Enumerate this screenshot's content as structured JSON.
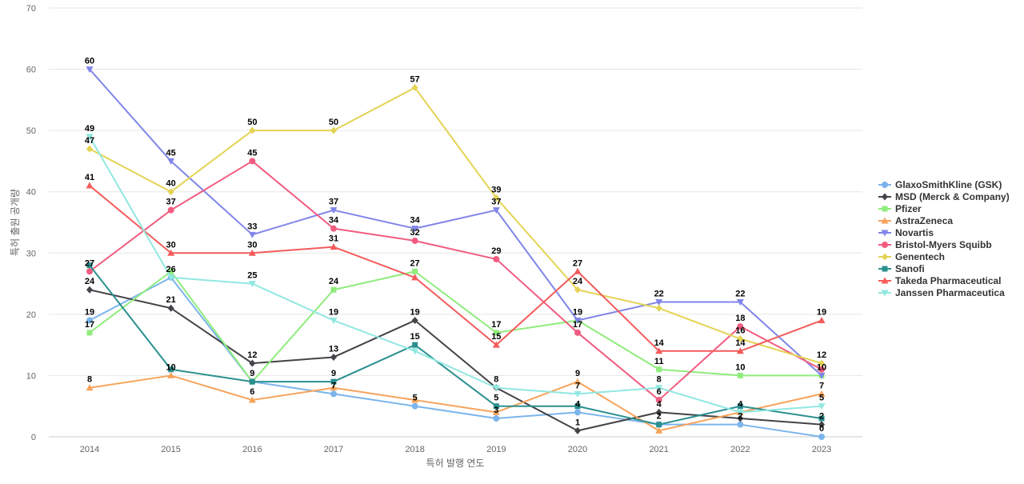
{
  "chart_data": {
    "type": "line",
    "title": "",
    "xlabel": "특허 발행 연도",
    "ylabel": "특허 출원 공개량",
    "x": [
      "2014",
      "2015",
      "2016",
      "2017",
      "2018",
      "2019",
      "2020",
      "2021",
      "2022",
      "2023"
    ],
    "ylim": [
      0,
      70
    ],
    "yticks": [
      0,
      10,
      20,
      30,
      40,
      50,
      60,
      70
    ],
    "grid": true,
    "legend_position": "right",
    "series": [
      {
        "name": "GlaxoSmithKline (GSK)",
        "color": "#7cb5ec",
        "marker": "circle",
        "values": [
          19,
          26,
          9,
          7,
          5,
          3,
          4,
          2,
          2,
          0
        ]
      },
      {
        "name": "MSD (Merck & Company)",
        "color": "#434348",
        "marker": "diamond",
        "values": [
          24,
          21,
          12,
          13,
          19,
          8,
          1,
          4,
          3,
          2
        ]
      },
      {
        "name": "Pfizer",
        "color": "#90ed7d",
        "marker": "square",
        "values": [
          17,
          27,
          9,
          24,
          27,
          17,
          19,
          11,
          10,
          10
        ]
      },
      {
        "name": "AstraZeneca",
        "color": "#f7a35c",
        "marker": "triangle",
        "values": [
          8,
          10,
          6,
          8,
          6,
          4,
          9,
          1,
          4,
          7
        ]
      },
      {
        "name": "Novartis",
        "color": "#8085e9",
        "marker": "triangle-down",
        "values": [
          60,
          45,
          33,
          37,
          34,
          37,
          19,
          22,
          22,
          10
        ]
      },
      {
        "name": "Bristol-Myers Squibb",
        "color": "#f15c80",
        "marker": "circle",
        "values": [
          27,
          37,
          45,
          34,
          32,
          29,
          17,
          6,
          18,
          11
        ]
      },
      {
        "name": "Genentech",
        "color": "#e4d354",
        "marker": "diamond",
        "values": [
          47,
          40,
          50,
          50,
          57,
          39,
          24,
          21,
          16,
          12
        ]
      },
      {
        "name": "Sanofi",
        "color": "#2b908f",
        "marker": "square",
        "values": [
          28,
          11,
          9,
          9,
          15,
          5,
          5,
          2,
          5,
          3
        ]
      },
      {
        "name": "Takeda Pharmaceutical",
        "color": "#f45b5b",
        "marker": "triangle",
        "values": [
          41,
          30,
          30,
          31,
          26,
          15,
          27,
          14,
          14,
          19
        ]
      },
      {
        "name": "Janssen Pharmaceutica",
        "color": "#91e8e1",
        "marker": "triangle-down",
        "values": [
          49,
          26,
          25,
          19,
          14,
          8,
          7,
          8,
          4,
          5
        ]
      }
    ],
    "data_labels": [
      {
        "x": "2014",
        "y": 60,
        "text": "60"
      },
      {
        "x": "2014",
        "y": 49,
        "text": "49"
      },
      {
        "x": "2014",
        "y": 47,
        "text": "47"
      },
      {
        "x": "2014",
        "y": 41,
        "text": "41"
      },
      {
        "x": "2014",
        "y": 27,
        "text": "27"
      },
      {
        "x": "2014",
        "y": 24,
        "text": "24"
      },
      {
        "x": "2014",
        "y": 19,
        "text": "19"
      },
      {
        "x": "2014",
        "y": 17,
        "text": "17"
      },
      {
        "x": "2014",
        "y": 8,
        "text": "8"
      },
      {
        "x": "2015",
        "y": 45,
        "text": "45"
      },
      {
        "x": "2015",
        "y": 40,
        "text": "40"
      },
      {
        "x": "2015",
        "y": 37,
        "text": "37"
      },
      {
        "x": "2015",
        "y": 30,
        "text": "30"
      },
      {
        "x": "2015",
        "y": 26,
        "text": "26"
      },
      {
        "x": "2015",
        "y": 21,
        "text": "21"
      },
      {
        "x": "2015",
        "y": 10,
        "text": "10"
      },
      {
        "x": "2016",
        "y": 50,
        "text": "50"
      },
      {
        "x": "2016",
        "y": 45,
        "text": "45"
      },
      {
        "x": "2016",
        "y": 33,
        "text": "33"
      },
      {
        "x": "2016",
        "y": 30,
        "text": "30"
      },
      {
        "x": "2016",
        "y": 25,
        "text": "25"
      },
      {
        "x": "2016",
        "y": 12,
        "text": "12"
      },
      {
        "x": "2016",
        "y": 9,
        "text": "9"
      },
      {
        "x": "2016",
        "y": 6,
        "text": "6"
      },
      {
        "x": "2017",
        "y": 50,
        "text": "50"
      },
      {
        "x": "2017",
        "y": 37,
        "text": "37"
      },
      {
        "x": "2017",
        "y": 34,
        "text": "34"
      },
      {
        "x": "2017",
        "y": 31,
        "text": "31"
      },
      {
        "x": "2017",
        "y": 24,
        "text": "24"
      },
      {
        "x": "2017",
        "y": 19,
        "text": "19"
      },
      {
        "x": "2017",
        "y": 13,
        "text": "13"
      },
      {
        "x": "2017",
        "y": 9,
        "text": "9"
      },
      {
        "x": "2017",
        "y": 7,
        "text": "7"
      },
      {
        "x": "2018",
        "y": 57,
        "text": "57"
      },
      {
        "x": "2018",
        "y": 34,
        "text": "34"
      },
      {
        "x": "2018",
        "y": 32,
        "text": "32"
      },
      {
        "x": "2018",
        "y": 27,
        "text": "27"
      },
      {
        "x": "2018",
        "y": 19,
        "text": "19"
      },
      {
        "x": "2018",
        "y": 15,
        "text": "15"
      },
      {
        "x": "2018",
        "y": 5,
        "text": "5"
      },
      {
        "x": "2019",
        "y": 39,
        "text": "39"
      },
      {
        "x": "2019",
        "y": 37,
        "text": "37"
      },
      {
        "x": "2019",
        "y": 29,
        "text": "29"
      },
      {
        "x": "2019",
        "y": 17,
        "text": "17"
      },
      {
        "x": "2019",
        "y": 15,
        "text": "15"
      },
      {
        "x": "2019",
        "y": 8,
        "text": "8"
      },
      {
        "x": "2019",
        "y": 5,
        "text": "5"
      },
      {
        "x": "2019",
        "y": 3,
        "text": "3"
      },
      {
        "x": "2020",
        "y": 27,
        "text": "27"
      },
      {
        "x": "2020",
        "y": 24,
        "text": "24"
      },
      {
        "x": "2020",
        "y": 19,
        "text": "19"
      },
      {
        "x": "2020",
        "y": 17,
        "text": "17"
      },
      {
        "x": "2020",
        "y": 9,
        "text": "9"
      },
      {
        "x": "2020",
        "y": 7,
        "text": "7"
      },
      {
        "x": "2020",
        "y": 4,
        "text": "4"
      },
      {
        "x": "2020",
        "y": 1,
        "text": "1"
      },
      {
        "x": "2021",
        "y": 22,
        "text": "22"
      },
      {
        "x": "2021",
        "y": 14,
        "text": "14"
      },
      {
        "x": "2021",
        "y": 11,
        "text": "11"
      },
      {
        "x": "2021",
        "y": 8,
        "text": "8"
      },
      {
        "x": "2021",
        "y": 6,
        "text": "6"
      },
      {
        "x": "2021",
        "y": 4,
        "text": "4"
      },
      {
        "x": "2021",
        "y": 2,
        "text": "2"
      },
      {
        "x": "2022",
        "y": 22,
        "text": "22"
      },
      {
        "x": "2022",
        "y": 18,
        "text": "18"
      },
      {
        "x": "2022",
        "y": 16,
        "text": "16"
      },
      {
        "x": "2022",
        "y": 14,
        "text": "14"
      },
      {
        "x": "2022",
        "y": 10,
        "text": "10"
      },
      {
        "x": "2022",
        "y": 4,
        "text": "4"
      },
      {
        "x": "2022",
        "y": 2,
        "text": "2"
      },
      {
        "x": "2023",
        "y": 19,
        "text": "19"
      },
      {
        "x": "2023",
        "y": 12,
        "text": "12"
      },
      {
        "x": "2023",
        "y": 10,
        "text": "10"
      },
      {
        "x": "2023",
        "y": 7,
        "text": "7"
      },
      {
        "x": "2023",
        "y": 5,
        "text": "5"
      },
      {
        "x": "2023",
        "y": 2,
        "text": "2"
      },
      {
        "x": "2023",
        "y": 0,
        "text": "0"
      }
    ]
  }
}
